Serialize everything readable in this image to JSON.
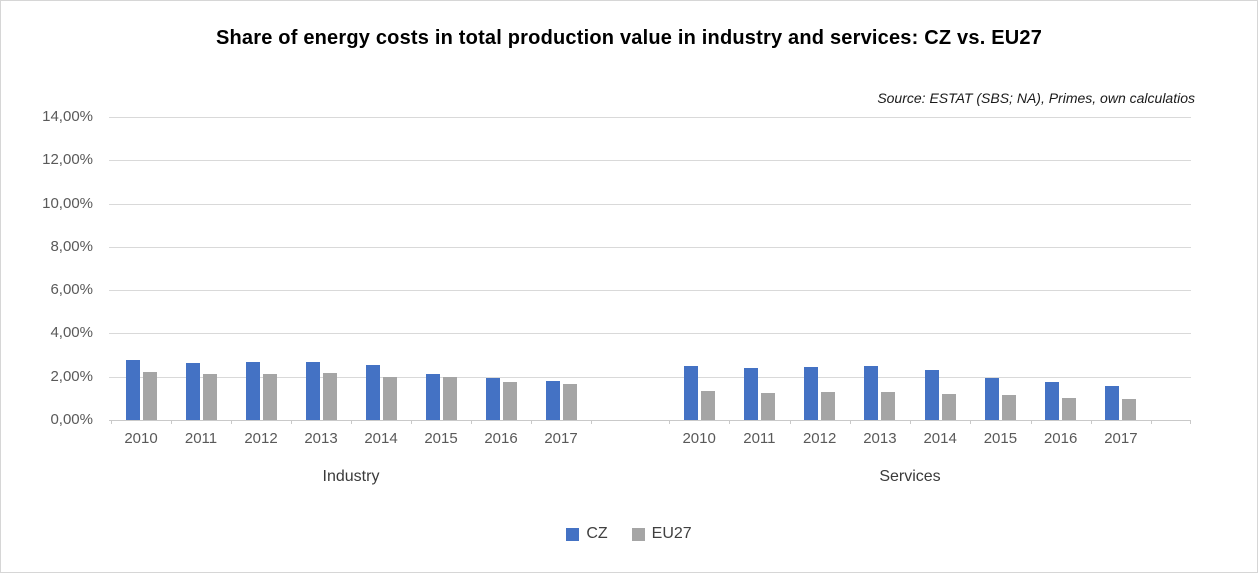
{
  "title": "Share of energy costs in total production value in industry and services: CZ vs. EU27",
  "source_note": "Source: ESTAT (SBS; NA), Primes, own calculatios",
  "legend": {
    "items": [
      {
        "label": "CZ",
        "color": "#4472C4"
      },
      {
        "label": "EU27",
        "color": "#A5A5A5"
      }
    ]
  },
  "colors": {
    "cz": "#4472C4",
    "eu27": "#A5A5A5",
    "gridline": "#D9D9D9",
    "axis_text": "#595959",
    "title_text": "#000000"
  },
  "chart_data": {
    "type": "bar",
    "title": "Share of energy costs in total production value in industry and services: CZ vs. EU27",
    "xlabel": "",
    "ylabel": "",
    "ylim": [
      0,
      14
    ],
    "ytick_step": 2,
    "ytick_labels": [
      "0,00%",
      "2,00%",
      "4,00%",
      "6,00%",
      "8,00%",
      "10,00%",
      "12,00%",
      "14,00%"
    ],
    "value_unit": "percent of total production value",
    "grid": true,
    "legend_position": "bottom",
    "groups": [
      {
        "label": "Industry",
        "categories": [
          "2010",
          "2011",
          "2012",
          "2013",
          "2014",
          "2015",
          "2016",
          "2017"
        ],
        "series": [
          {
            "name": "CZ",
            "color": "#4472C4",
            "values": [
              2.75,
              2.65,
              2.68,
              2.7,
              2.52,
              2.13,
              1.93,
              1.78
            ]
          },
          {
            "name": "EU27",
            "color": "#A5A5A5",
            "values": [
              2.22,
              2.12,
              2.13,
              2.18,
              2.0,
              1.98,
              1.76,
              1.68
            ]
          }
        ]
      },
      {
        "label": "Services",
        "categories": [
          "2010",
          "2011",
          "2012",
          "2013",
          "2014",
          "2015",
          "2016",
          "2017"
        ],
        "series": [
          {
            "name": "CZ",
            "color": "#4472C4",
            "values": [
              2.5,
              2.42,
              2.45,
              2.48,
              2.32,
              1.95,
              1.74,
              1.56
            ]
          },
          {
            "name": "EU27",
            "color": "#A5A5A5",
            "values": [
              1.35,
              1.27,
              1.28,
              1.31,
              1.19,
              1.14,
              1.04,
              0.97
            ]
          }
        ]
      }
    ]
  }
}
